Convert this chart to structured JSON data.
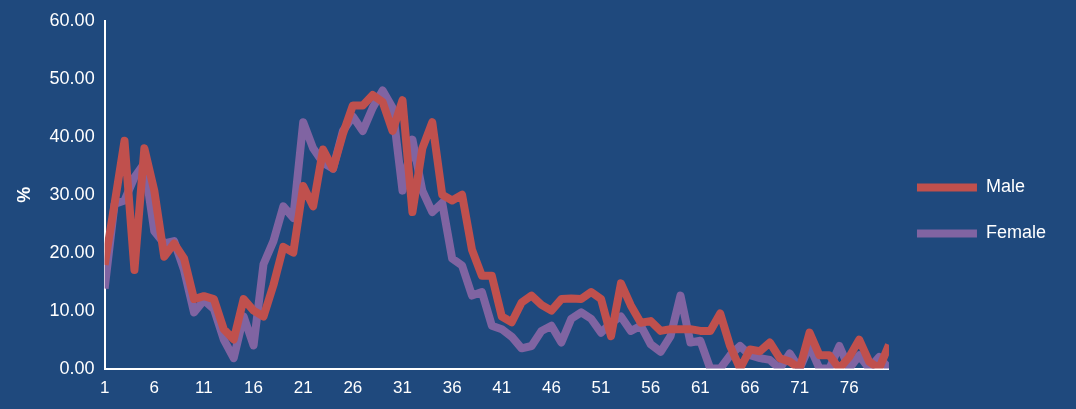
{
  "chart_data": {
    "type": "line",
    "ylabel": "%",
    "x": [
      1,
      2,
      3,
      4,
      5,
      6,
      7,
      8,
      9,
      10,
      11,
      12,
      13,
      14,
      15,
      16,
      17,
      18,
      19,
      20,
      21,
      22,
      23,
      24,
      25,
      26,
      27,
      28,
      29,
      30,
      31,
      32,
      33,
      34,
      35,
      36,
      37,
      38,
      39,
      40,
      41,
      42,
      43,
      44,
      45,
      46,
      47,
      48,
      49,
      50,
      51,
      52,
      53,
      54,
      55,
      56,
      57,
      58,
      59,
      60,
      61,
      62,
      63,
      64,
      65,
      66,
      67,
      68,
      69,
      70,
      71,
      72,
      73,
      74,
      75,
      76,
      77,
      78,
      79,
      80
    ],
    "xlim": [
      1,
      80
    ],
    "xticks": [
      1,
      6,
      11,
      16,
      21,
      26,
      31,
      36,
      41,
      46,
      51,
      56,
      61,
      66,
      71,
      76
    ],
    "series": [
      {
        "name": "Male",
        "color": "#c0504d",
        "values": [
          17.9,
          28.4,
          39.3,
          17,
          38,
          30.7,
          19.3,
          21.6,
          19,
          12,
          12.5,
          12,
          6.8,
          5,
          12,
          10,
          9,
          14.4,
          21,
          20,
          31.5,
          28,
          37.8,
          34.5,
          40.5,
          45.4,
          45.4,
          47.2,
          46,
          41,
          46.3,
          27,
          38,
          42.5,
          30,
          29,
          30,
          20.5,
          16,
          16,
          9,
          8,
          11.4,
          12.6,
          11,
          10,
          12,
          12.1,
          12,
          13.2,
          12,
          5.6,
          14.7,
          10.9,
          7.9,
          8.2,
          6.5,
          6.8,
          6.8,
          6.8,
          6.5,
          6.5,
          9.5,
          3.9,
          0,
          3.3,
          3,
          4.5,
          1.8,
          1.2,
          0,
          6.2,
          2.3,
          2.3,
          0,
          2,
          5,
          1.2,
          0,
          4.1
        ]
      },
      {
        "name": "Female",
        "color": "#8064a2",
        "values": [
          13.8,
          28.4,
          29,
          33,
          35.4,
          23.7,
          21.6,
          22,
          17,
          9.7,
          11.8,
          10.3,
          5,
          1.8,
          9,
          4,
          18,
          22,
          28,
          26,
          42.5,
          38,
          35.5,
          34.5,
          41,
          43.5,
          41,
          45,
          48,
          45,
          30.7,
          39.5,
          30.7,
          27,
          28.6,
          19,
          17.8,
          12.6,
          13.2,
          7.4,
          6.8,
          5.5,
          3.5,
          3.9,
          6.5,
          7.4,
          4.5,
          8.6,
          9.7,
          8.6,
          6.2,
          7.9,
          9,
          6.5,
          7.4,
          4.2,
          2.9,
          5.6,
          12.6,
          4.5,
          4.8,
          0,
          0,
          2.3,
          3.9,
          2.3,
          1.8,
          1.5,
          0,
          2.6,
          0,
          3.9,
          0,
          0,
          3.9,
          0,
          2.3,
          0,
          2,
          0
        ]
      }
    ],
    "ylim": [
      0,
      60
    ],
    "yticks": [
      {
        "value": 0,
        "label": "0.00"
      },
      {
        "value": 10,
        "label": "10.00"
      },
      {
        "value": 20,
        "label": "20.00"
      },
      {
        "value": 30,
        "label": "30.00"
      },
      {
        "value": 40,
        "label": "40.00"
      },
      {
        "value": 50,
        "label": "50.00"
      },
      {
        "value": 60,
        "label": "60.00"
      }
    ],
    "grid": false,
    "legend": "right",
    "marker": "none",
    "line_style": "solid"
  }
}
